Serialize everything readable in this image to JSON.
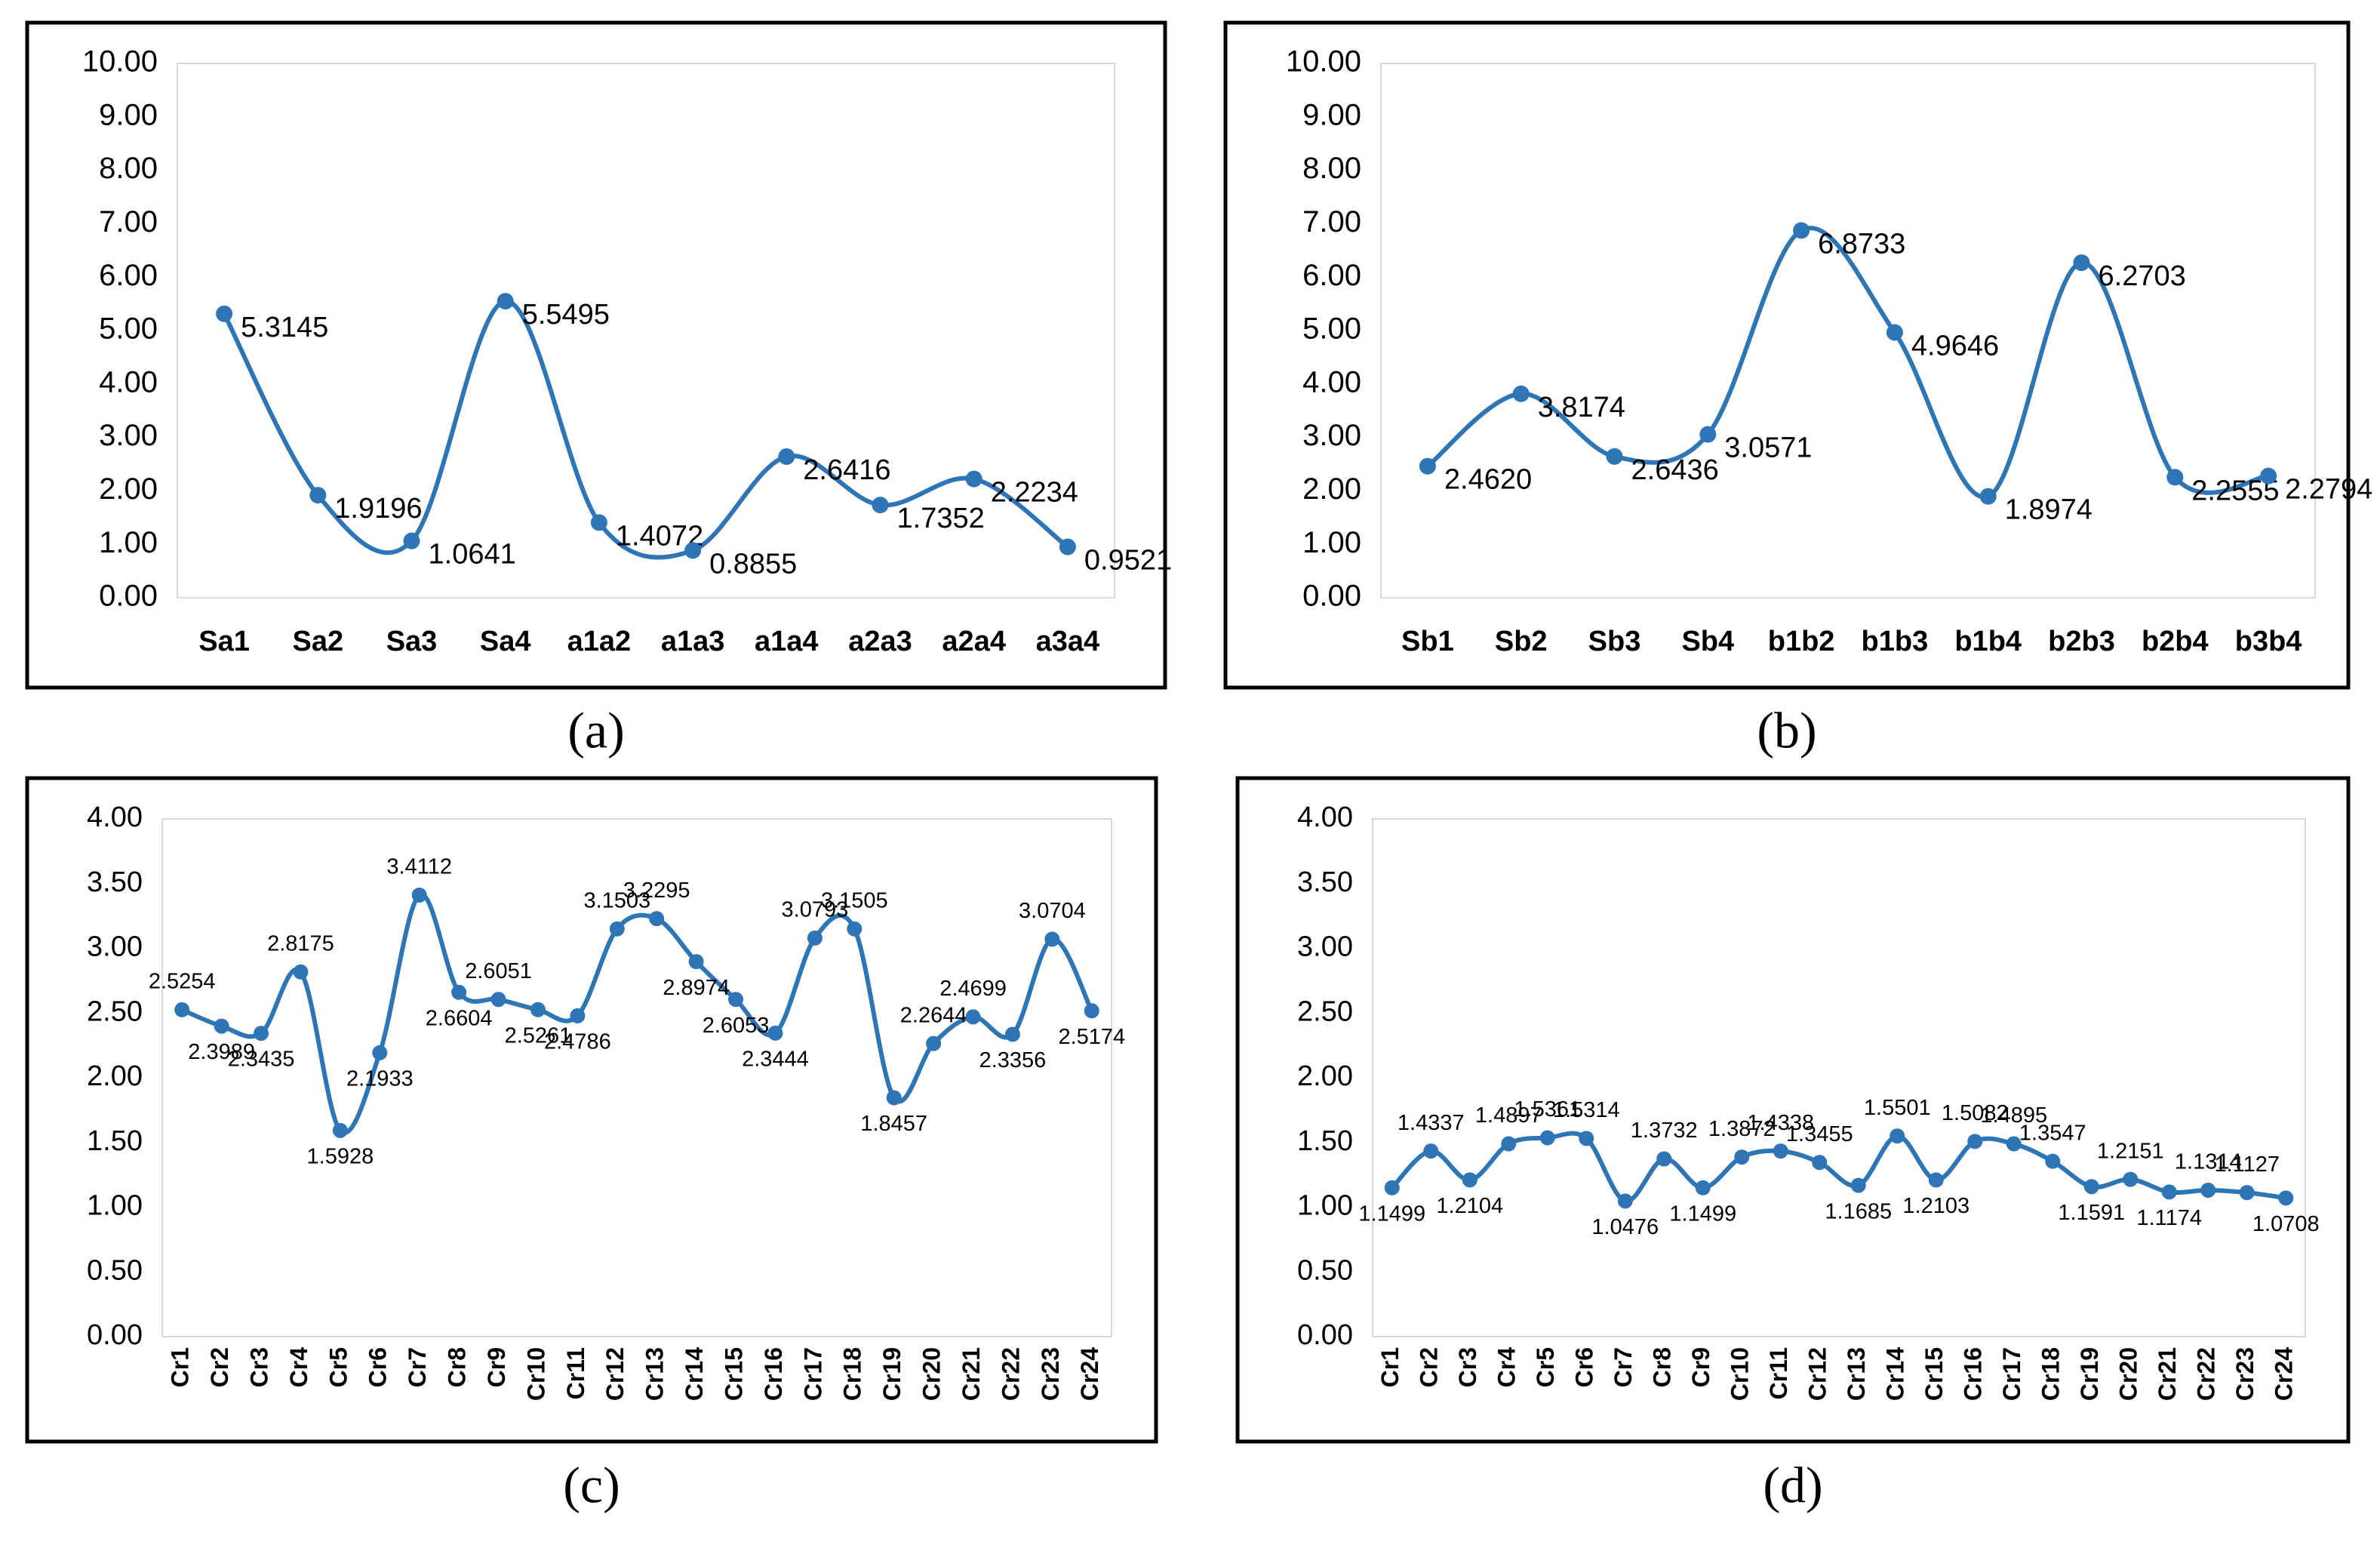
{
  "chart_data": [
    {
      "type": "line",
      "caption": "(a)",
      "color": "#2e75b6",
      "grid": false,
      "categories": [
        "Sa1",
        "Sa2",
        "Sa3",
        "Sa4",
        "a1a2",
        "a1a3",
        "a1a4",
        "a2a3",
        "a2a4",
        "a3a4"
      ],
      "values": [
        5.3145,
        1.9196,
        1.0641,
        5.5495,
        1.4072,
        0.8855,
        2.6416,
        1.7352,
        2.2234,
        0.9521
      ],
      "value_labels": [
        "5.3145",
        "1.9196",
        "1.0641",
        "5.5495",
        "1.4072",
        "0.8855",
        "2.6416",
        "1.7352",
        "2.2234",
        "0.9521"
      ],
      "ylim": [
        0,
        10
      ],
      "yticks": [
        {
          "value": 0,
          "label": "0.00"
        },
        {
          "value": 1,
          "label": "1.00"
        },
        {
          "value": 2,
          "label": "2.00"
        },
        {
          "value": 3,
          "label": "3.00"
        },
        {
          "value": 4,
          "label": "4.00"
        },
        {
          "value": 5,
          "label": "5.00"
        },
        {
          "value": 6,
          "label": "6.00"
        },
        {
          "value": 7,
          "label": "7.00"
        },
        {
          "value": 8,
          "label": "8.00"
        },
        {
          "value": 9,
          "label": "9.00"
        },
        {
          "value": 10,
          "label": "10.00"
        }
      ]
    },
    {
      "type": "line",
      "caption": "(b)",
      "color": "#2e75b6",
      "grid": false,
      "categories": [
        "Sb1",
        "Sb2",
        "Sb3",
        "Sb4",
        "b1b2",
        "b1b3",
        "b1b4",
        "b2b3",
        "b2b4",
        "b3b4"
      ],
      "values": [
        2.462,
        3.8174,
        2.6436,
        3.0571,
        6.8733,
        4.9646,
        1.8974,
        6.2703,
        2.2555,
        2.2794
      ],
      "value_labels": [
        "2.4620",
        "3.8174",
        "2.6436",
        "3.0571",
        "6.8733",
        "4.9646",
        "1.8974",
        "6.2703",
        "2.2555",
        "2.2794"
      ],
      "ylim": [
        0,
        10
      ],
      "yticks": [
        {
          "value": 0,
          "label": "0.00"
        },
        {
          "value": 1,
          "label": "1.00"
        },
        {
          "value": 2,
          "label": "2.00"
        },
        {
          "value": 3,
          "label": "3.00"
        },
        {
          "value": 4,
          "label": "4.00"
        },
        {
          "value": 5,
          "label": "5.00"
        },
        {
          "value": 6,
          "label": "6.00"
        },
        {
          "value": 7,
          "label": "7.00"
        },
        {
          "value": 8,
          "label": "8.00"
        },
        {
          "value": 9,
          "label": "9.00"
        },
        {
          "value": 10,
          "label": "10.00"
        }
      ]
    },
    {
      "type": "line",
      "caption": "(c)",
      "color": "#2e75b6",
      "grid": false,
      "categories": [
        "Cr1",
        "Cr2",
        "Cr3",
        "Cr4",
        "Cr5",
        "Cr6",
        "Cr7",
        "Cr8",
        "Cr9",
        "Cr10",
        "Cr11",
        "Cr12",
        "Cr13",
        "Cr14",
        "Cr15",
        "Cr16",
        "Cr17",
        "Cr18",
        "Cr19",
        "Cr20",
        "Cr21",
        "Cr22",
        "Cr23",
        "Cr24"
      ],
      "values": [
        2.5254,
        2.3989,
        2.3435,
        2.8175,
        1.5928,
        2.1933,
        3.4112,
        2.6604,
        2.6051,
        2.5261,
        2.4786,
        3.1503,
        3.2295,
        2.8974,
        2.6053,
        2.3444,
        3.0793,
        3.1505,
        1.8457,
        2.2644,
        2.4699,
        2.3356,
        3.0704,
        2.5174
      ],
      "value_labels": [
        "2.5254",
        "2.3989",
        "2.3435",
        "2.8175",
        "1.5928",
        "2.1933",
        "3.4112",
        "2.6604",
        "2.6051",
        "2.5261",
        "2.4786",
        "3.1503",
        "3.2295",
        "2.8974",
        "2.6053",
        "2.3444",
        "3.0793",
        "3.1505",
        "1.8457",
        "2.2644",
        "2.4699",
        "2.3356",
        "3.0704",
        "2.5174"
      ],
      "ylim": [
        0,
        4
      ],
      "yticks": [
        {
          "value": 0,
          "label": "0.00"
        },
        {
          "value": 0.5,
          "label": "0.50"
        },
        {
          "value": 1,
          "label": "1.00"
        },
        {
          "value": 1.5,
          "label": "1.50"
        },
        {
          "value": 2,
          "label": "2.00"
        },
        {
          "value": 2.5,
          "label": "2.50"
        },
        {
          "value": 3,
          "label": "3.00"
        },
        {
          "value": 3.5,
          "label": "3.50"
        },
        {
          "value": 4,
          "label": "4.00"
        }
      ]
    },
    {
      "type": "line",
      "caption": "(d)",
      "color": "#2e75b6",
      "grid": false,
      "categories": [
        "Cr1",
        "Cr2",
        "Cr3",
        "Cr4",
        "Cr5",
        "Cr6",
        "Cr7",
        "Cr8",
        "Cr9",
        "Cr10",
        "Cr11",
        "Cr12",
        "Cr13",
        "Cr14",
        "Cr15",
        "Cr16",
        "Cr17",
        "Cr18",
        "Cr19",
        "Cr20",
        "Cr21",
        "Cr22",
        "Cr23",
        "Cr24"
      ],
      "values": [
        1.1499,
        1.4337,
        1.2104,
        1.4897,
        1.5361,
        1.5314,
        1.0476,
        1.3732,
        1.1499,
        1.3872,
        1.4338,
        1.3455,
        1.1685,
        1.5501,
        1.2103,
        1.5082,
        1.4895,
        1.3547,
        1.1591,
        1.2151,
        1.1174,
        1.1314,
        1.1127,
        1.0708
      ],
      "value_labels": [
        "1.1499",
        "1.4337",
        "1.2104",
        "1.4897",
        "1.5361",
        "1.5314",
        "1.0476",
        "1.3732",
        "1.1499",
        "1.3872",
        "1.4338",
        "1.3455",
        "1.1685",
        "1.5501",
        "1.2103",
        "1.5082",
        "1.4895",
        "1.3547",
        "1.1591",
        "1.2151",
        "1.1174",
        "1.1314",
        "1.1127",
        "1.0708"
      ],
      "ylim": [
        0,
        4
      ],
      "yticks": [
        {
          "value": 0,
          "label": "0.00"
        },
        {
          "value": 0.5,
          "label": "0.50"
        },
        {
          "value": 1,
          "label": "1.00"
        },
        {
          "value": 1.5,
          "label": "1.50"
        },
        {
          "value": 2,
          "label": "2.00"
        },
        {
          "value": 2.5,
          "label": "2.50"
        },
        {
          "value": 3,
          "label": "3.00"
        },
        {
          "value": 3.5,
          "label": "3.50"
        },
        {
          "value": 4,
          "label": "4.00"
        }
      ]
    }
  ]
}
